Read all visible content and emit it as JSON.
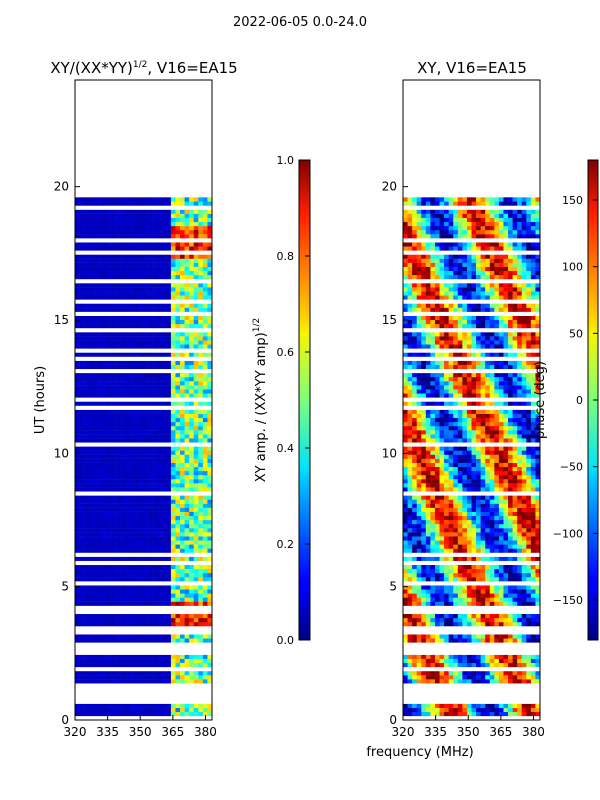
{
  "figure": {
    "suptitle": "2022-06-05 0.0-24.0"
  },
  "chart_data": [
    {
      "type": "heatmap",
      "title": "XY/(XX*YY)",
      "title_exponent": "1/2",
      "title_suffix": ", V16=EA15",
      "xlabel": "",
      "ylabel": "UT (hours)",
      "xlim": [
        320,
        383
      ],
      "ylim": [
        0,
        24
      ],
      "xticks": [
        320,
        335,
        350,
        365,
        380
      ],
      "yticks": [
        0,
        5,
        10,
        15,
        20
      ],
      "data_top_hours": 19.6,
      "colormap": "jet",
      "colorbar": {
        "label": "XY amp. / (XX*YY amp)",
        "label_exponent": "1/2",
        "range": [
          0.0,
          1.0
        ],
        "ticks": [
          "0.0",
          "0.2",
          "0.4",
          "0.6",
          "0.8",
          "1.0"
        ]
      },
      "description_values": {
        "background_amplitude": 0.05,
        "active_band_mhz": [
          363,
          382
        ],
        "active_band_amplitude_range": [
          0.3,
          0.85
        ]
      }
    },
    {
      "type": "heatmap",
      "title": "XY, V16=EA15",
      "xlabel": "frequency (MHz)",
      "ylabel": "",
      "xlim": [
        320,
        383
      ],
      "ylim": [
        0,
        24
      ],
      "xticks": [
        320,
        335,
        350,
        365,
        380
      ],
      "yticks": [
        0,
        5,
        10,
        15,
        20
      ],
      "data_top_hours": 19.6,
      "colormap": "jet",
      "colorbar": {
        "label": "phase (deg)",
        "range": [
          -180,
          180
        ],
        "ticks": [
          "150",
          "100",
          "50",
          "0",
          "−50",
          "−100",
          "−150"
        ]
      }
    }
  ],
  "colors": {
    "low": "#00007f",
    "high": "#7f0000",
    "gap": "#ffffff"
  }
}
